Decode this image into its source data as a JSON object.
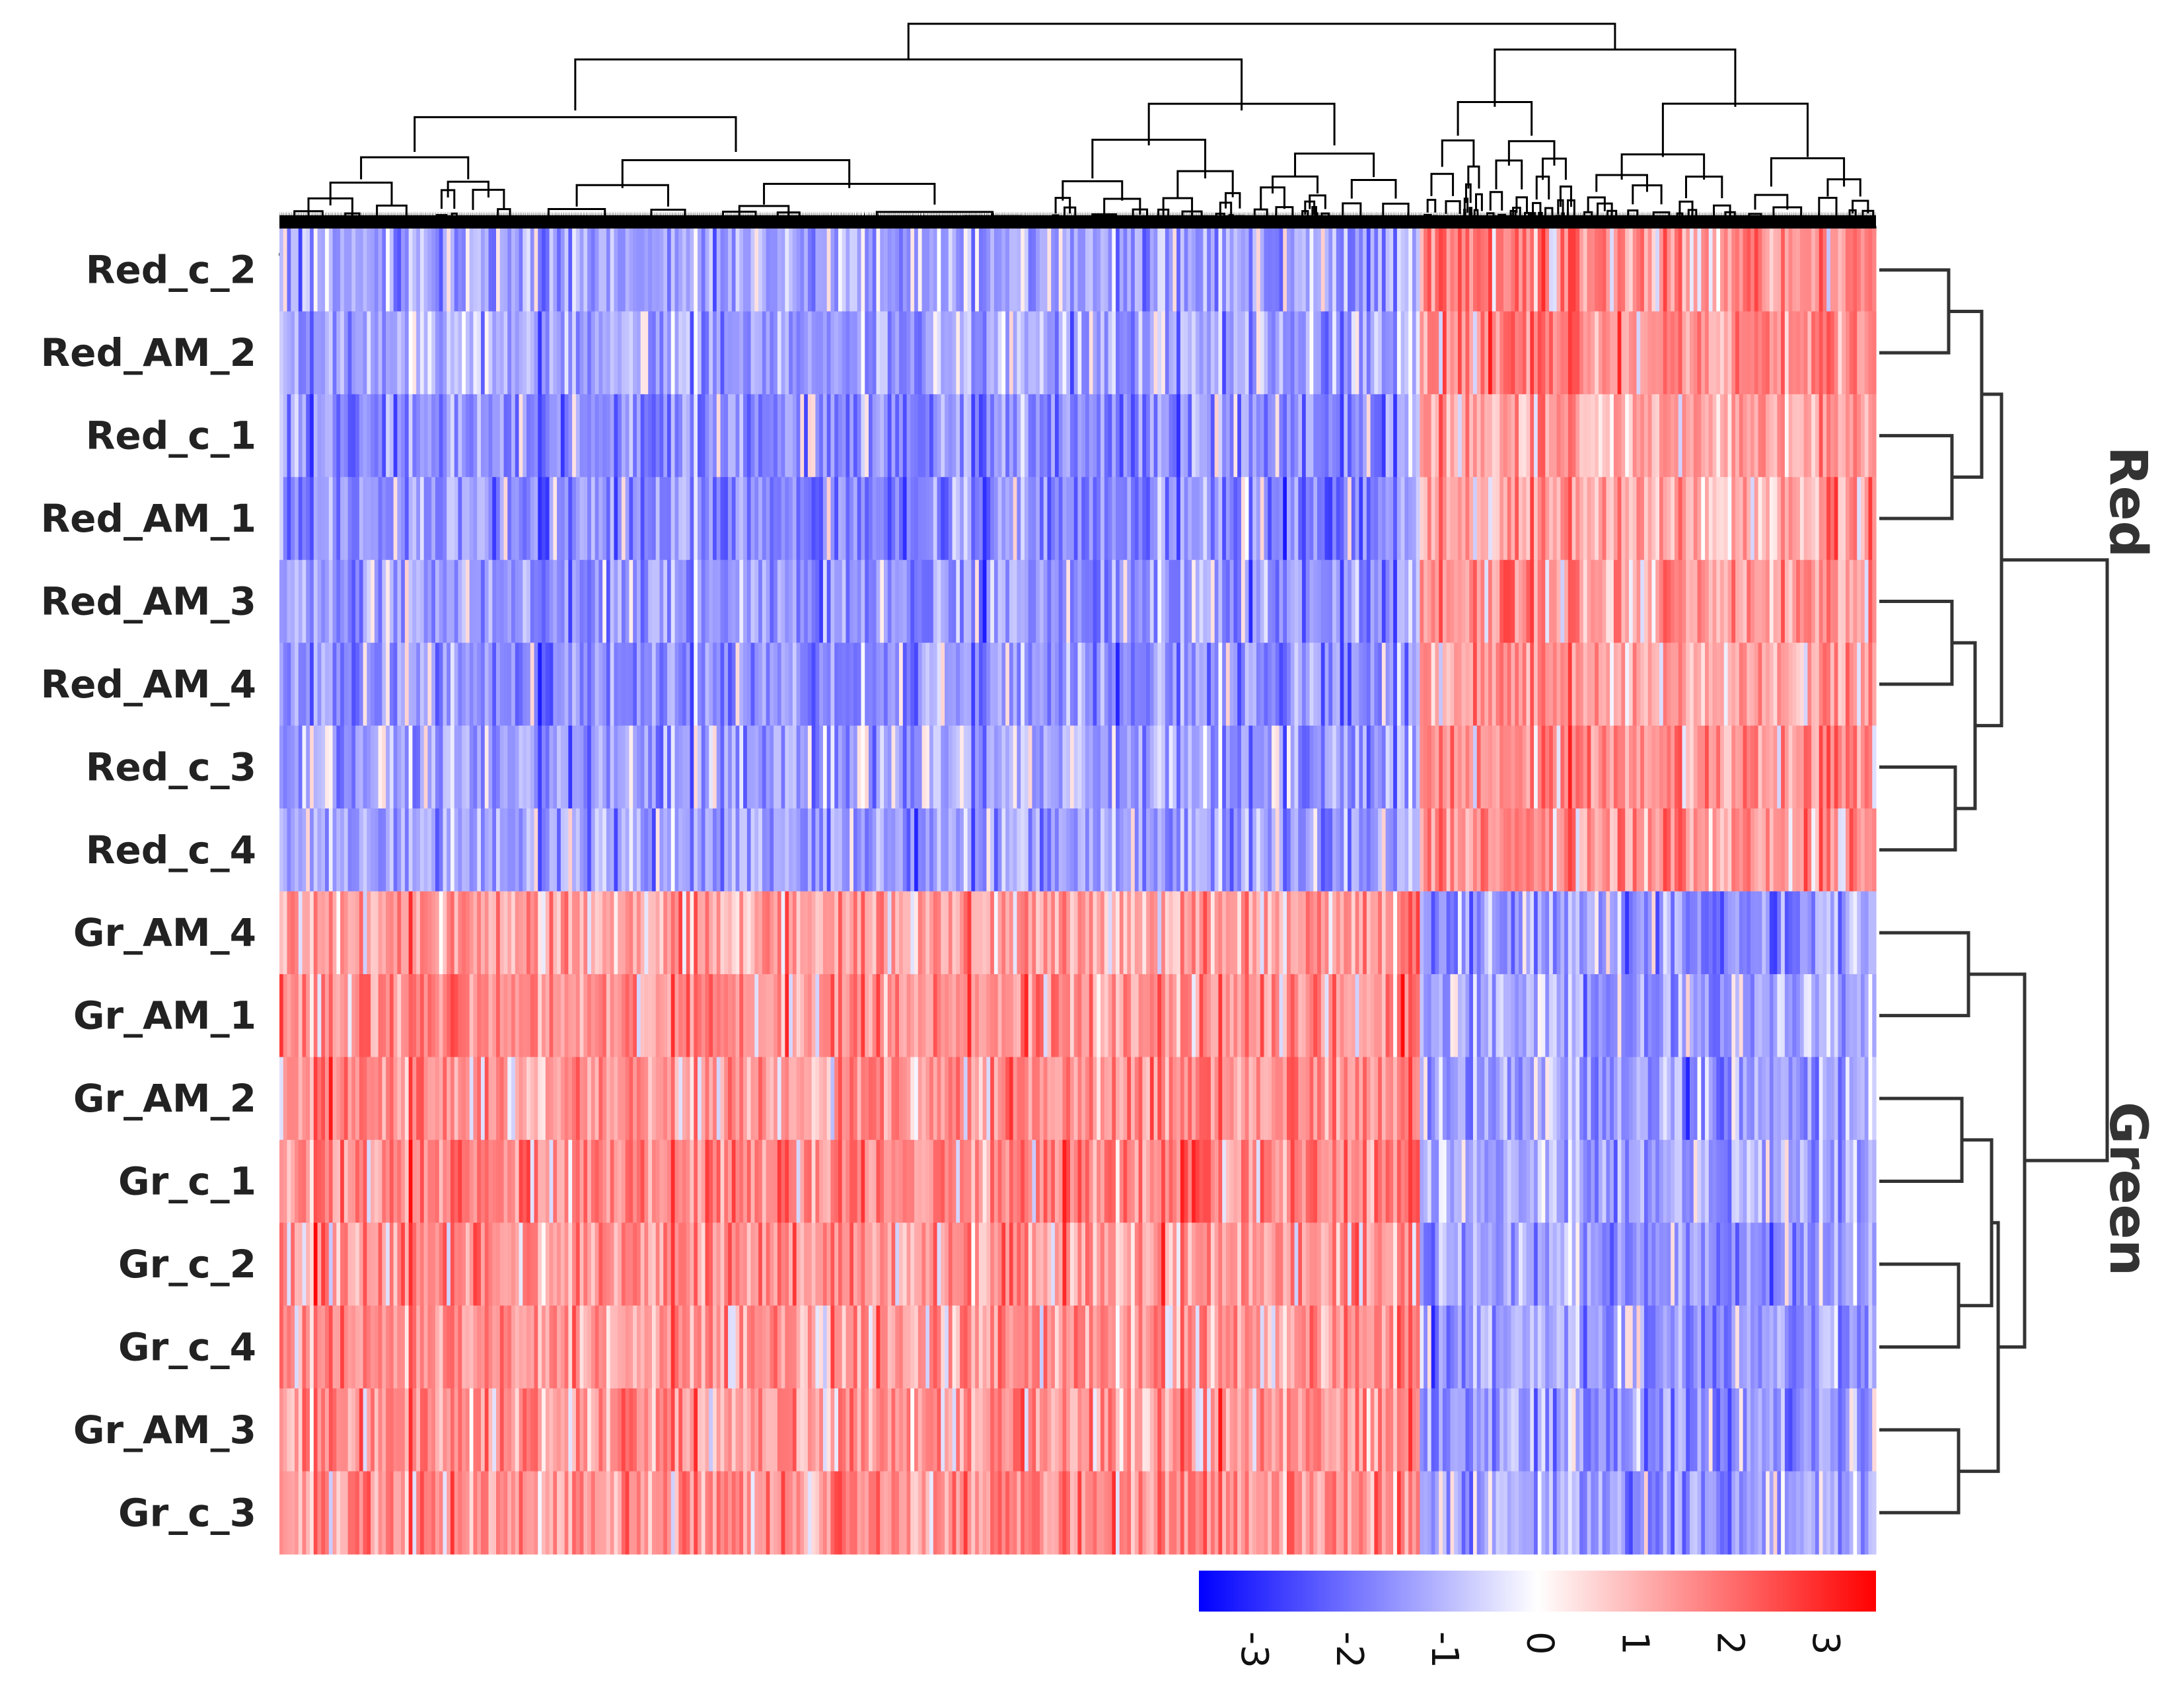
{
  "chart_data": {
    "type": "heatmap",
    "title": "",
    "xlabel": "",
    "ylabel": "",
    "rows": [
      "Red_c_2",
      "Red_AM_2",
      "Red_c_1",
      "Red_AM_1",
      "Red_AM_3",
      "Red_AM_4",
      "Red_c_3",
      "Red_c_4",
      "Gr_AM_4",
      "Gr_AM_1",
      "Gr_AM_2",
      "Gr_c_1",
      "Gr_c_2",
      "Gr_c_4",
      "Gr_AM_3",
      "Gr_c_3"
    ],
    "row_groups": [
      {
        "name": "Red",
        "rows": [
          "Red_c_2",
          "Red_AM_2",
          "Red_c_1",
          "Red_AM_1",
          "Red_AM_3",
          "Red_AM_4",
          "Red_c_3",
          "Red_c_4"
        ]
      },
      {
        "name": "Green",
        "rows": [
          "Gr_AM_4",
          "Gr_AM_1",
          "Gr_AM_2",
          "Gr_c_1",
          "Gr_c_2",
          "Gr_c_4",
          "Gr_AM_3",
          "Gr_c_3"
        ]
      }
    ],
    "column_clusters": [
      {
        "fraction": 0.715,
        "mean_value_by_group": {
          "Red": -1.3,
          "Green": 1.3
        }
      },
      {
        "fraction": 0.285,
        "mean_value_by_group": {
          "Red": 1.3,
          "Green": -1.3
        }
      }
    ],
    "color_scale": {
      "min": -3,
      "max": 3,
      "ticks": [
        "-3",
        "-2",
        "-1",
        "0",
        "1",
        "2",
        "3"
      ],
      "low_color": "#0000ff",
      "mid_color": "#ffffff",
      "high_color": "#ff0000"
    },
    "dendrogram_color": "#000000",
    "row_dendrogram_color": "#333333",
    "legend_placement": "bottom-right",
    "grid": false
  }
}
